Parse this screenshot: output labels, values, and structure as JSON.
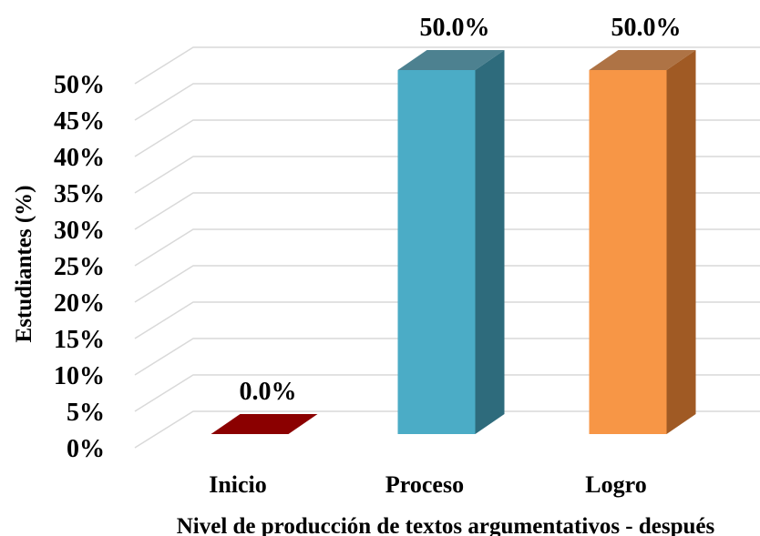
{
  "chart_data": {
    "type": "bar",
    "style": "3d-column",
    "categories": [
      "Inicio",
      "Proceso",
      "Logro"
    ],
    "values": [
      0.0,
      50.0,
      50.0
    ],
    "data_labels": [
      "0.0%",
      "50.0%",
      "50.0%"
    ],
    "colors": [
      "#8b0000",
      "#4bacc6",
      "#f79646"
    ],
    "side_colors": [
      "#5c0000",
      "#2e6b7c",
      "#a05a24"
    ],
    "ylabel": "Estudiantes (%)",
    "xlabel": "Nivel de producción de textos argumentativos - después",
    "ylim": [
      0,
      50
    ],
    "y_ticks": [
      "0%",
      "5%",
      "10%",
      "15%",
      "20%",
      "25%",
      "30%",
      "35%",
      "40%",
      "45%",
      "50%"
    ],
    "grid": true,
    "legend": "none"
  }
}
